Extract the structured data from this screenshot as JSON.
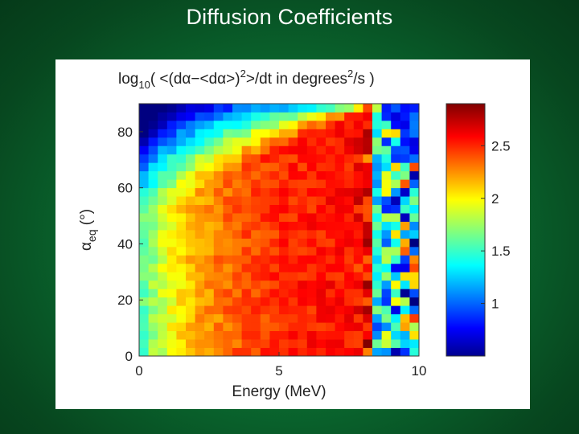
{
  "slide": {
    "title": "Diffusion Coefficients"
  },
  "chart_data": {
    "type": "heatmap",
    "title_parts": {
      "prefix": "log",
      "sub": "10",
      "mid": "( <(dα−<dα>)",
      "sup": "2",
      "mid2": ">/dt in degrees",
      "sup2": "2",
      "suffix": "/s )"
    },
    "xlabel": "Energy (MeV)",
    "ylabel_parts": {
      "main": "α",
      "sub": "eq",
      "unit": " (°)"
    },
    "xlim": [
      0,
      10
    ],
    "ylim": [
      0,
      90
    ],
    "xticks": [
      "0",
      "5",
      "10"
    ],
    "xtick_values": [
      0,
      5,
      10
    ],
    "yticks": [
      "0",
      "20",
      "40",
      "60",
      "80"
    ],
    "ytick_values": [
      0,
      20,
      40,
      60,
      80
    ],
    "colorbar": {
      "range": [
        0.5,
        2.9
      ],
      "ticks": [
        "1",
        "1.5",
        "2",
        "2.5"
      ],
      "tick_values": [
        1,
        1.5,
        2,
        2.5
      ],
      "colormap": "jet"
    },
    "grid_shape": {
      "energy_bins": 30,
      "pitch_angle_bins": 30
    },
    "description_values": {
      "low_energy_low_alpha": 1.7,
      "low_energy_high_alpha": 0.7,
      "mid_energy_mid_alpha": 2.55,
      "high_energy_low_alpha": 2.7,
      "high_energy_high_alpha": 0.8
    }
  }
}
